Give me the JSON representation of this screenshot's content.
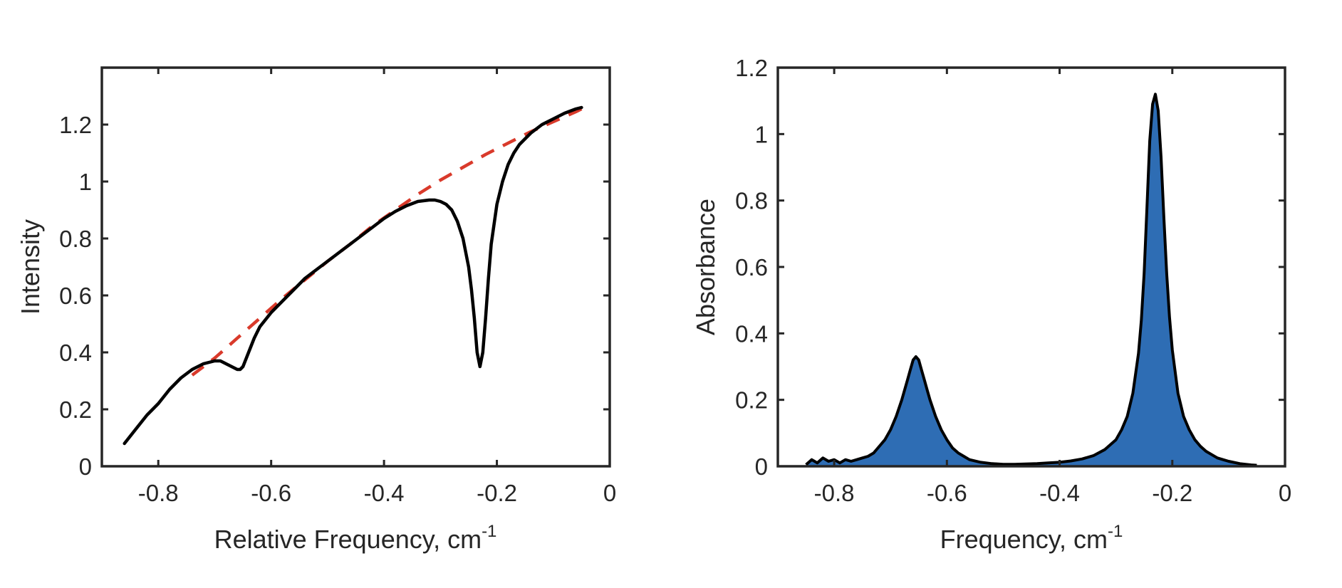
{
  "chart_data": [
    {
      "type": "line",
      "xlabel": "Relative Frequency, cm",
      "xlabel_superscript": "-1",
      "ylabel": "Intensity",
      "xlim": [
        -0.9,
        0
      ],
      "ylim": [
        0,
        1.4
      ],
      "xticks": [
        -0.8,
        -0.6,
        -0.4,
        -0.2,
        0
      ],
      "xtick_labels": [
        "-0.8",
        "-0.6",
        "-0.4",
        "-0.2",
        "0"
      ],
      "yticks": [
        0,
        0.2,
        0.4,
        0.6,
        0.8,
        1,
        1.2
      ],
      "ytick_labels": [
        "0",
        "0.2",
        "0.4",
        "0.6",
        "0.8",
        "1",
        "1.2"
      ],
      "grid": false,
      "series": [
        {
          "style": "solid",
          "color": "#000000",
          "x": [
            -0.86,
            -0.84,
            -0.82,
            -0.8,
            -0.78,
            -0.76,
            -0.74,
            -0.72,
            -0.7,
            -0.69,
            -0.68,
            -0.67,
            -0.66,
            -0.655,
            -0.65,
            -0.64,
            -0.63,
            -0.62,
            -0.6,
            -0.58,
            -0.56,
            -0.54,
            -0.52,
            -0.5,
            -0.48,
            -0.46,
            -0.44,
            -0.42,
            -0.4,
            -0.38,
            -0.36,
            -0.34,
            -0.32,
            -0.31,
            -0.3,
            -0.29,
            -0.28,
            -0.27,
            -0.26,
            -0.25,
            -0.245,
            -0.24,
            -0.235,
            -0.23,
            -0.225,
            -0.22,
            -0.215,
            -0.21,
            -0.2,
            -0.19,
            -0.18,
            -0.17,
            -0.16,
            -0.14,
            -0.12,
            -0.1,
            -0.08,
            -0.06,
            -0.05
          ],
          "y": [
            0.08,
            0.13,
            0.18,
            0.22,
            0.27,
            0.31,
            0.34,
            0.36,
            0.37,
            0.37,
            0.36,
            0.35,
            0.34,
            0.34,
            0.35,
            0.4,
            0.45,
            0.49,
            0.54,
            0.58,
            0.62,
            0.66,
            0.69,
            0.72,
            0.75,
            0.78,
            0.81,
            0.84,
            0.87,
            0.895,
            0.915,
            0.93,
            0.935,
            0.935,
            0.93,
            0.92,
            0.9,
            0.86,
            0.8,
            0.7,
            0.62,
            0.52,
            0.4,
            0.35,
            0.4,
            0.52,
            0.66,
            0.78,
            0.92,
            1.0,
            1.06,
            1.1,
            1.13,
            1.17,
            1.2,
            1.22,
            1.24,
            1.255,
            1.26
          ]
        },
        {
          "style": "dashed",
          "color": "#d93a2b",
          "x": [
            -0.74,
            -0.7,
            -0.66,
            -0.62,
            -0.58,
            -0.54,
            -0.5,
            -0.46,
            -0.42,
            -0.38,
            -0.34,
            -0.3,
            -0.26,
            -0.22,
            -0.18,
            -0.14,
            -0.1,
            -0.06,
            -0.05
          ],
          "y": [
            0.32,
            0.38,
            0.45,
            0.52,
            0.59,
            0.655,
            0.72,
            0.78,
            0.845,
            0.9,
            0.955,
            1.005,
            1.05,
            1.095,
            1.135,
            1.175,
            1.21,
            1.245,
            1.255
          ]
        }
      ]
    },
    {
      "type": "area",
      "xlabel": "Frequency, cm",
      "xlabel_superscript": "-1",
      "ylabel": "Absorbance",
      "xlim": [
        -0.9,
        0
      ],
      "ylim": [
        0,
        1.2
      ],
      "xticks": [
        -0.8,
        -0.6,
        -0.4,
        -0.2,
        0
      ],
      "xtick_labels": [
        "-0.8",
        "-0.6",
        "-0.4",
        "-0.2",
        "0"
      ],
      "yticks": [
        0,
        0.2,
        0.4,
        0.6,
        0.8,
        1,
        1.2
      ],
      "ytick_labels": [
        "0",
        "0.2",
        "0.4",
        "0.6",
        "0.8",
        "1",
        "1.2"
      ],
      "grid": false,
      "series": [
        {
          "fill_color": "#2e6db4",
          "line_color": "#000000",
          "x": [
            -0.85,
            -0.84,
            -0.83,
            -0.82,
            -0.81,
            -0.8,
            -0.79,
            -0.78,
            -0.77,
            -0.76,
            -0.75,
            -0.74,
            -0.73,
            -0.72,
            -0.71,
            -0.7,
            -0.69,
            -0.68,
            -0.67,
            -0.665,
            -0.66,
            -0.655,
            -0.65,
            -0.645,
            -0.64,
            -0.635,
            -0.63,
            -0.62,
            -0.61,
            -0.6,
            -0.59,
            -0.58,
            -0.57,
            -0.56,
            -0.54,
            -0.52,
            -0.5,
            -0.48,
            -0.46,
            -0.44,
            -0.42,
            -0.4,
            -0.38,
            -0.36,
            -0.34,
            -0.32,
            -0.3,
            -0.29,
            -0.28,
            -0.27,
            -0.26,
            -0.255,
            -0.25,
            -0.245,
            -0.24,
            -0.235,
            -0.23,
            -0.225,
            -0.22,
            -0.215,
            -0.21,
            -0.205,
            -0.2,
            -0.19,
            -0.18,
            -0.17,
            -0.16,
            -0.15,
            -0.14,
            -0.13,
            -0.12,
            -0.11,
            -0.1,
            -0.08,
            -0.06,
            -0.05
          ],
          "y": [
            0.005,
            0.02,
            0.01,
            0.025,
            0.015,
            0.02,
            0.01,
            0.02,
            0.015,
            0.02,
            0.025,
            0.03,
            0.04,
            0.06,
            0.08,
            0.11,
            0.15,
            0.2,
            0.26,
            0.29,
            0.32,
            0.33,
            0.32,
            0.29,
            0.26,
            0.23,
            0.2,
            0.15,
            0.11,
            0.08,
            0.055,
            0.04,
            0.03,
            0.02,
            0.012,
            0.008,
            0.006,
            0.006,
            0.007,
            0.008,
            0.01,
            0.012,
            0.016,
            0.022,
            0.032,
            0.05,
            0.08,
            0.11,
            0.15,
            0.22,
            0.34,
            0.44,
            0.58,
            0.78,
            0.98,
            1.09,
            1.12,
            1.07,
            0.93,
            0.75,
            0.58,
            0.45,
            0.35,
            0.22,
            0.15,
            0.11,
            0.08,
            0.06,
            0.045,
            0.035,
            0.025,
            0.02,
            0.015,
            0.008,
            0.004,
            0.003
          ]
        }
      ]
    }
  ]
}
